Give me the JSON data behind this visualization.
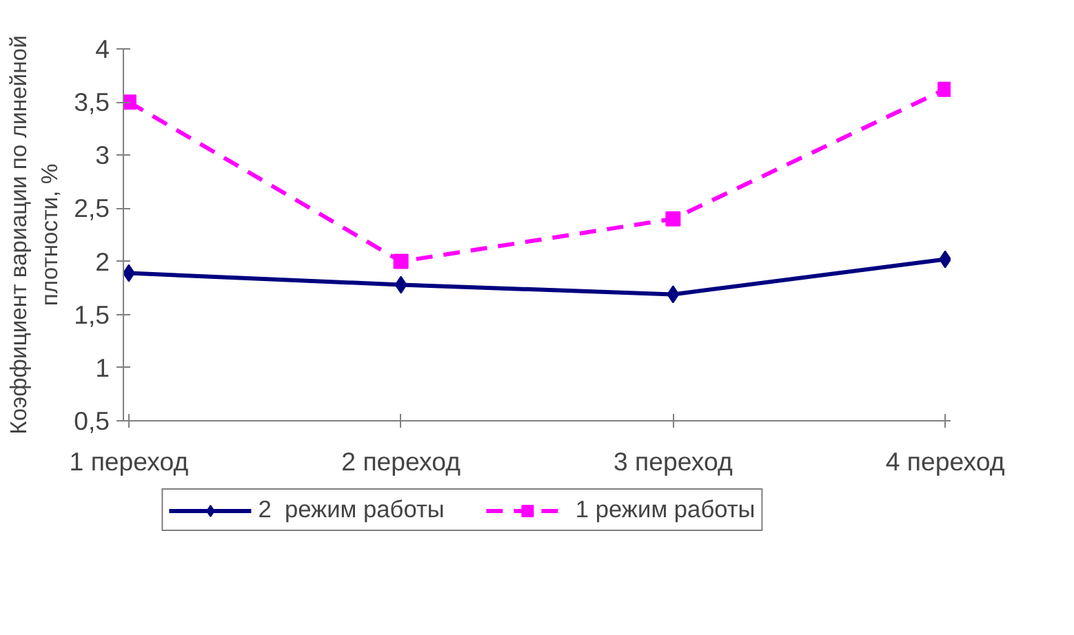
{
  "chart_data": {
    "type": "line",
    "ylabel": "Коэффициент вариации по линейной\nплотности, %",
    "categories": [
      "1 переход",
      "2 переход",
      "3 переход",
      "4 переход"
    ],
    "series": [
      {
        "name": "2  режим работы",
        "color": "#000080",
        "values": [
          1.89,
          1.78,
          1.69,
          2.02
        ],
        "marker": "diamond",
        "line_style": "solid"
      },
      {
        "name": "1 режим работы",
        "color": "#ff00ff",
        "values": [
          3.5,
          2.0,
          2.4,
          3.62
        ],
        "marker": "square",
        "line_style": "dashed"
      }
    ],
    "ylim": [
      0.5,
      4
    ],
    "yticks": [
      {
        "value": 0.5,
        "label": "0,5"
      },
      1,
      {
        "value": 1.5,
        "label": "1,5"
      },
      2,
      {
        "value": 2.5,
        "label": "2,5"
      },
      3,
      {
        "value": 3.5,
        "label": "3,5"
      },
      4
    ],
    "grid": false,
    "legend": "bottom"
  }
}
